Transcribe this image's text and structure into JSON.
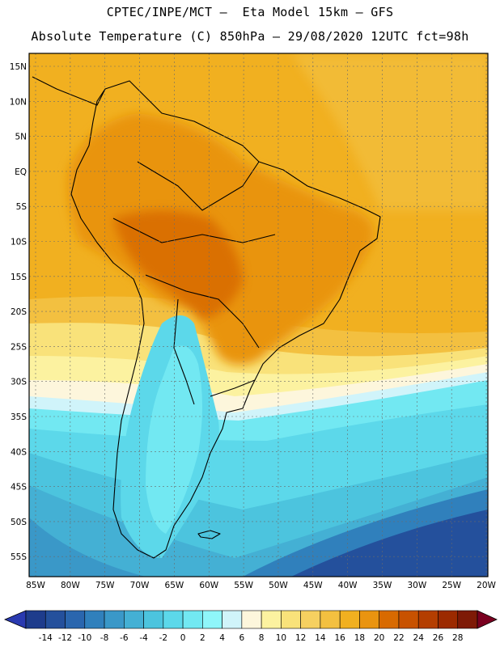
{
  "header": {
    "line1": "CPTEC/INPE/MCT –  Eta Model 15km – GFS",
    "line2": "Absolute Temperature (C) 850hPa – 29/08/2020 12UTC fct=98h"
  },
  "axes": {
    "lat_labels": [
      "15N",
      "10N",
      "5N",
      "EQ",
      "5S",
      "10S",
      "15S",
      "20S",
      "25S",
      "30S",
      "35S",
      "40S",
      "45S",
      "50S",
      "55S"
    ],
    "lon_labels": [
      "85W",
      "80W",
      "75W",
      "70W",
      "65W",
      "60W",
      "55W",
      "50W",
      "45W",
      "40W",
      "35W",
      "30W",
      "25W",
      "20W"
    ]
  },
  "colorbar": {
    "ticks": [
      "-14",
      "-12",
      "-10",
      "-8",
      "-6",
      "-4",
      "-2",
      "0",
      "2",
      "4",
      "6",
      "8",
      "10",
      "12",
      "14",
      "16",
      "18",
      "20",
      "22",
      "24",
      "26",
      "28"
    ],
    "colors": [
      "#1e3c8c",
      "#24509c",
      "#2a66ae",
      "#3080bc",
      "#3a98c8",
      "#44b0d4",
      "#4cc4de",
      "#5cd8ea",
      "#72e8f2",
      "#8ff6fa",
      "#d0f4fa",
      "#fdf6dc",
      "#fcf2a0",
      "#f9e27a",
      "#f6d060",
      "#f3c040",
      "#f1b020",
      "#e99410",
      "#d86a00",
      "#c85200",
      "#b43e00",
      "#9c2a00",
      "#7e1a06"
    ],
    "under_color": "#2a3ab0",
    "over_color": "#7a0020"
  }
}
